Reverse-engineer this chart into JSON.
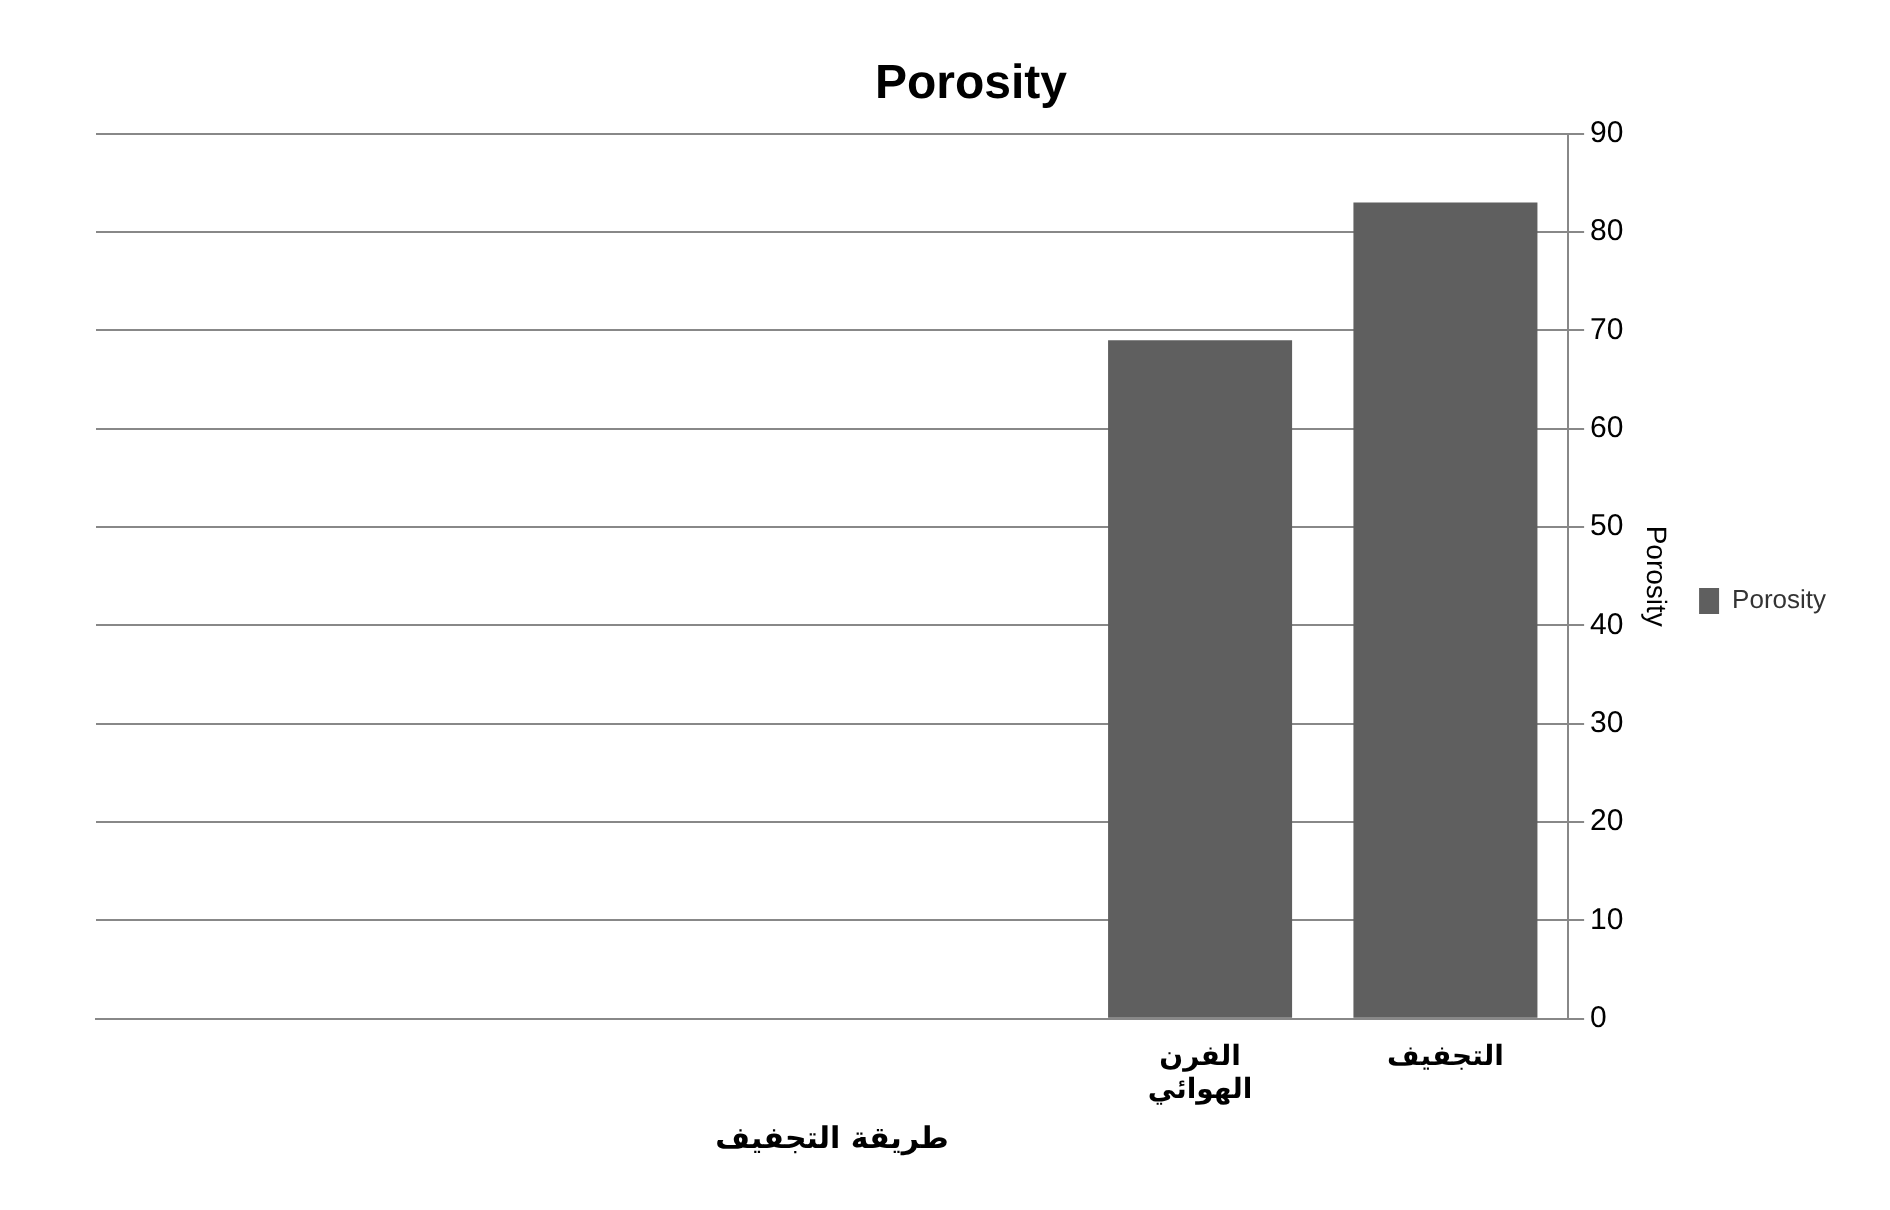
{
  "chart_data": {
    "type": "bar",
    "title": "Porosity",
    "xlabel": "طريقة التجفيف",
    "ylabel": "Porosity",
    "categories": [
      null,
      null,
      null,
      null,
      "الفرن الهوائي",
      "التجفيف"
    ],
    "series": [
      {
        "name": "Porosity",
        "color": "#5f5f5f",
        "values": [
          null,
          null,
          null,
          null,
          69,
          83
        ]
      }
    ],
    "ylim": [
      0,
      90
    ],
    "yticks": [
      0,
      10,
      20,
      30,
      40,
      50,
      60,
      70,
      80,
      90
    ],
    "grid": "y",
    "legend": "right"
  }
}
